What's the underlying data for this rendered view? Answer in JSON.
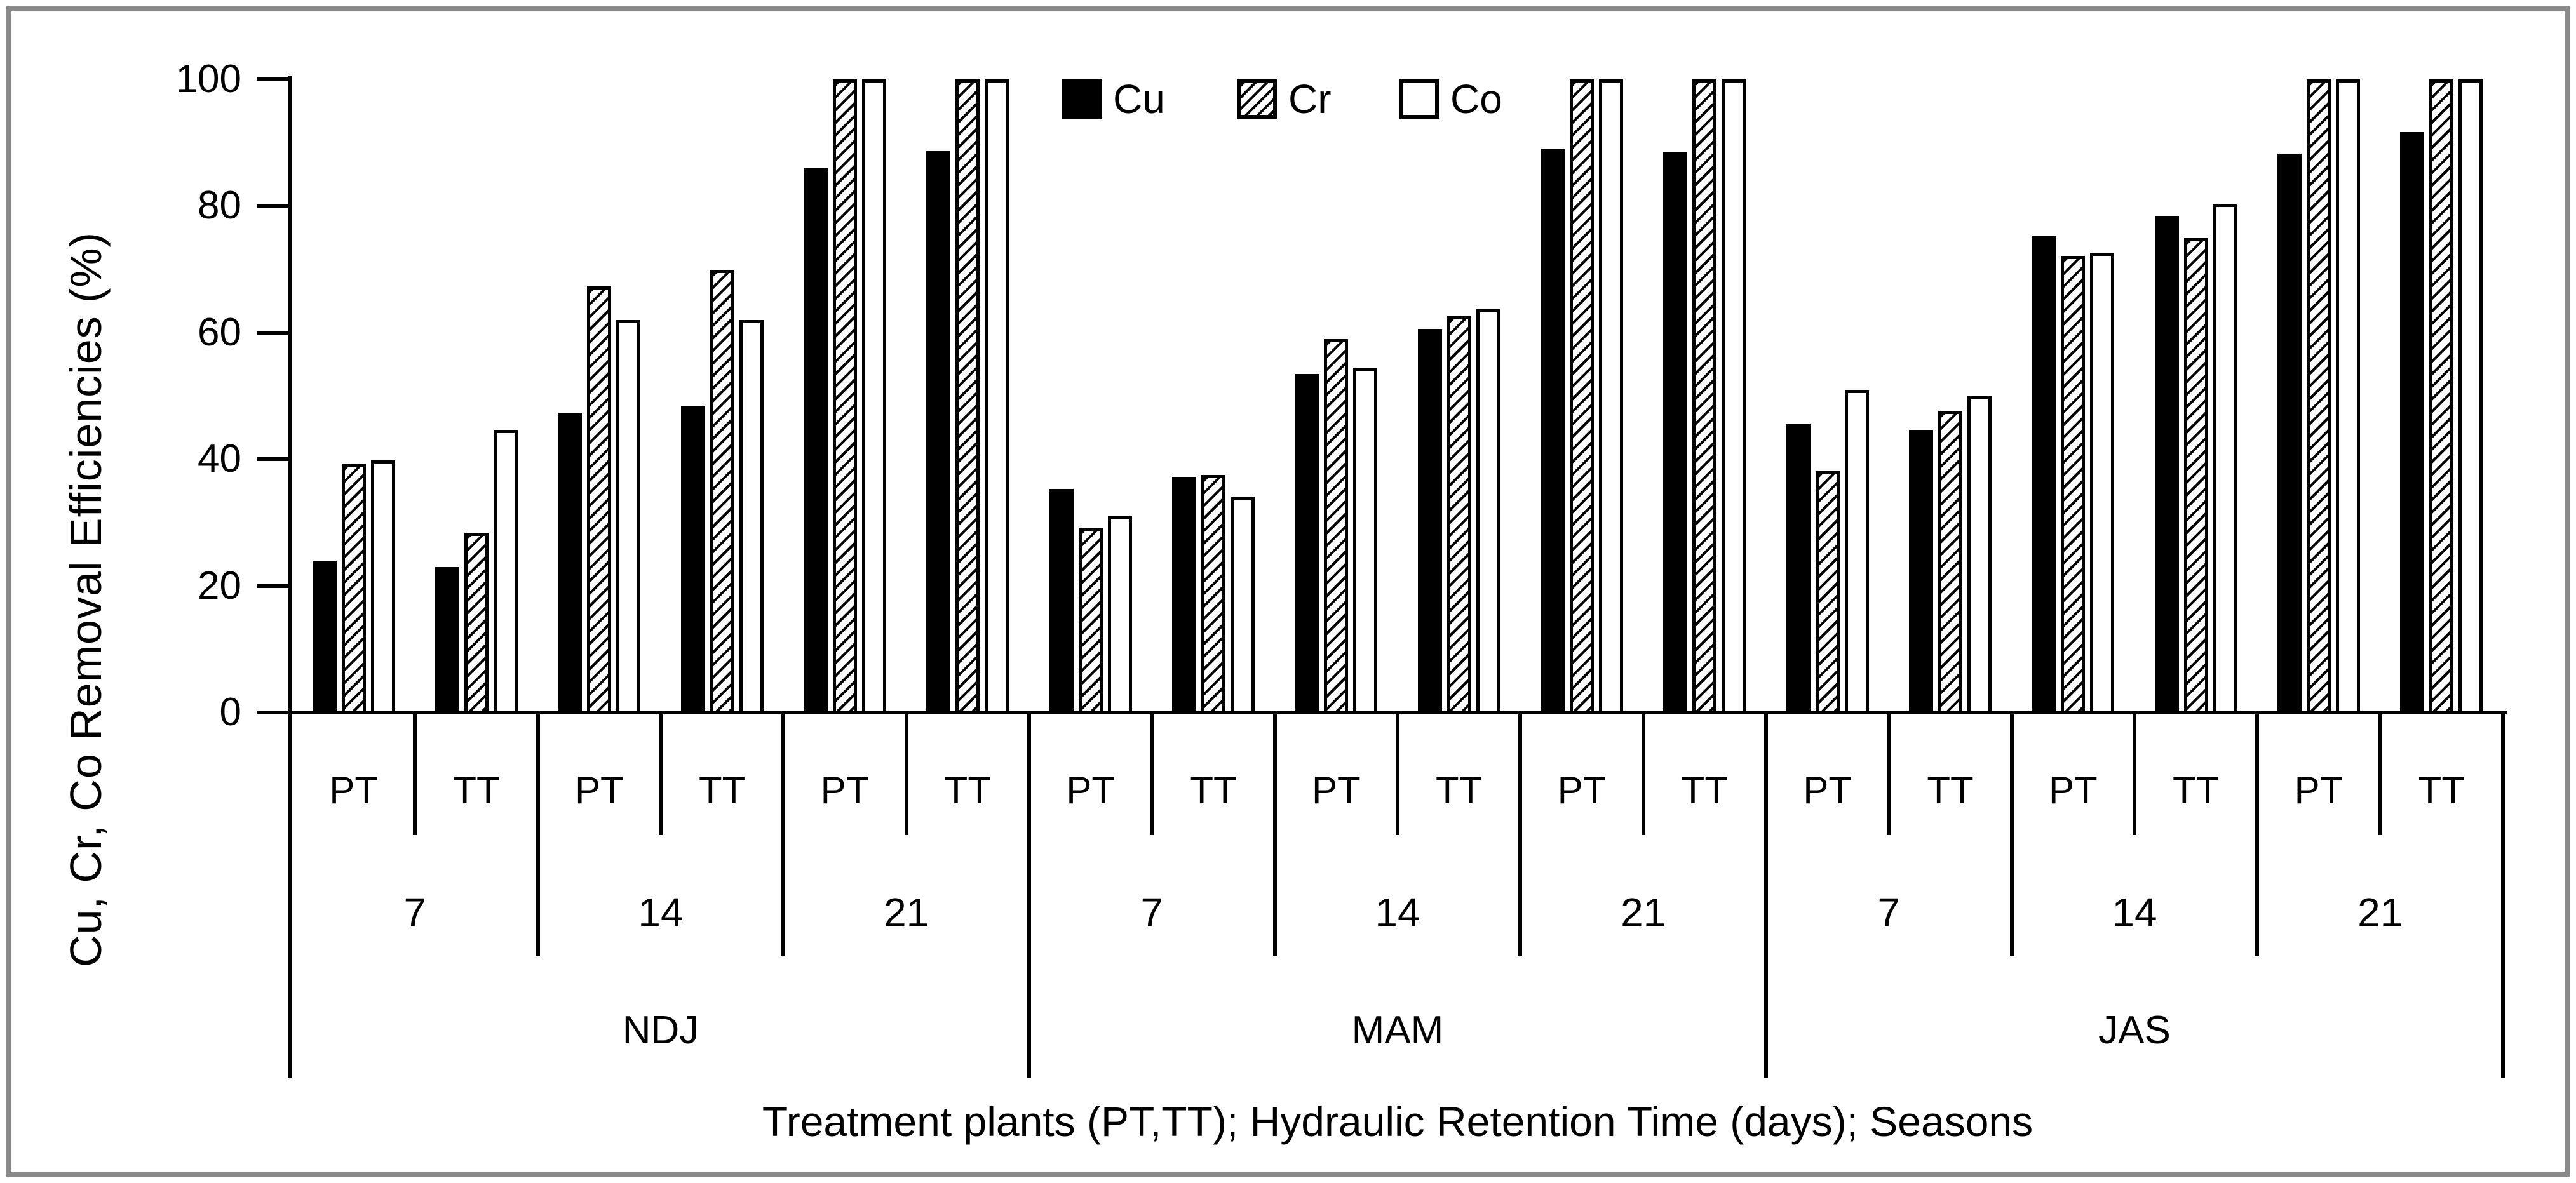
{
  "chart_data": {
    "type": "bar",
    "title": "",
    "ylabel": "Cu, Cr, Co Removal Efficiencies (%)",
    "xlabel": "Treatment plants (PT,TT); Hydraulic Retention Time (days); Seasons",
    "ylim": [
      0,
      100
    ],
    "yticks": [
      0,
      20,
      40,
      60,
      80,
      100
    ],
    "grid": "off",
    "legend_position": "top-center",
    "legend": [
      {
        "name": "Cu",
        "fill": "solid-black"
      },
      {
        "name": "Cr",
        "fill": "diagonal-hatch"
      },
      {
        "name": "Co",
        "fill": "white"
      }
    ],
    "axis_levels": {
      "plants": [
        "PT",
        "TT"
      ],
      "hrt_days": [
        "7",
        "14",
        "21"
      ],
      "seasons": [
        "NDJ",
        "MAM",
        "JAS"
      ]
    },
    "series_order": [
      "Cu",
      "Cr",
      "Co"
    ],
    "groups": [
      {
        "season": "NDJ",
        "hrt": "7",
        "plant": "PT",
        "values": [
          24.0,
          39.3,
          39.8
        ]
      },
      {
        "season": "NDJ",
        "hrt": "7",
        "plant": "TT",
        "values": [
          23.0,
          28.4,
          44.6
        ]
      },
      {
        "season": "NDJ",
        "hrt": "14",
        "plant": "PT",
        "values": [
          47.2,
          67.3,
          62.0
        ]
      },
      {
        "season": "NDJ",
        "hrt": "14",
        "plant": "TT",
        "values": [
          48.4,
          69.9,
          62.0
        ]
      },
      {
        "season": "NDJ",
        "hrt": "21",
        "plant": "PT",
        "values": [
          86.0,
          100,
          100
        ]
      },
      {
        "season": "NDJ",
        "hrt": "21",
        "plant": "TT",
        "values": [
          88.7,
          100,
          100
        ]
      },
      {
        "season": "MAM",
        "hrt": "7",
        "plant": "PT",
        "values": [
          35.3,
          29.2,
          31.1
        ]
      },
      {
        "season": "MAM",
        "hrt": "7",
        "plant": "TT",
        "values": [
          37.2,
          37.5,
          34.1
        ]
      },
      {
        "season": "MAM",
        "hrt": "14",
        "plant": "PT",
        "values": [
          53.5,
          59.0,
          54.5
        ]
      },
      {
        "season": "MAM",
        "hrt": "14",
        "plant": "TT",
        "values": [
          60.6,
          62.6,
          63.8
        ]
      },
      {
        "season": "MAM",
        "hrt": "21",
        "plant": "PT",
        "values": [
          89.0,
          100,
          100
        ]
      },
      {
        "season": "MAM",
        "hrt": "21",
        "plant": "TT",
        "values": [
          88.5,
          100,
          100
        ]
      },
      {
        "season": "JAS",
        "hrt": "7",
        "plant": "PT",
        "values": [
          45.6,
          38.1,
          51.0
        ]
      },
      {
        "season": "JAS",
        "hrt": "7",
        "plant": "TT",
        "values": [
          44.6,
          47.6,
          49.9
        ]
      },
      {
        "season": "JAS",
        "hrt": "14",
        "plant": "PT",
        "values": [
          75.3,
          72.1,
          72.6
        ]
      },
      {
        "season": "JAS",
        "hrt": "14",
        "plant": "TT",
        "values": [
          78.4,
          74.9,
          80.3
        ]
      },
      {
        "season": "JAS",
        "hrt": "21",
        "plant": "PT",
        "values": [
          88.3,
          100,
          100
        ]
      },
      {
        "season": "JAS",
        "hrt": "21",
        "plant": "TT",
        "values": [
          91.7,
          100,
          100
        ]
      }
    ],
    "frame_color": "#8a8a8a",
    "bar_colors": {
      "Cu": "#000000",
      "Cr": "hatch /",
      "Co": "#ffffff"
    }
  }
}
